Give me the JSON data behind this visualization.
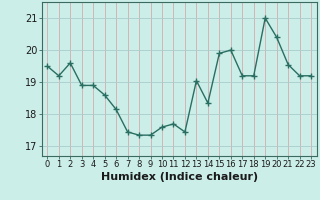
{
  "x": [
    0,
    1,
    2,
    3,
    4,
    5,
    6,
    7,
    8,
    9,
    10,
    11,
    12,
    13,
    14,
    15,
    16,
    17,
    18,
    19,
    20,
    21,
    22,
    23
  ],
  "y": [
    19.5,
    19.2,
    19.6,
    18.9,
    18.9,
    18.6,
    18.15,
    17.45,
    17.35,
    17.35,
    17.6,
    17.7,
    17.45,
    19.05,
    18.35,
    19.9,
    20.0,
    19.2,
    19.2,
    21.0,
    20.4,
    19.55,
    19.2,
    19.2
  ],
  "line_color": "#2a6e62",
  "bg_color": "#cceee8",
  "grid_color_x": "#d4aaaa",
  "grid_color_y": "#aacccc",
  "xlabel": "Humidex (Indice chaleur)",
  "ylim": [
    16.7,
    21.5
  ],
  "xlim": [
    -0.5,
    23.5
  ],
  "yticks": [
    17,
    18,
    19,
    20,
    21
  ],
  "xticks": [
    0,
    1,
    2,
    3,
    4,
    5,
    6,
    7,
    8,
    9,
    10,
    11,
    12,
    13,
    14,
    15,
    16,
    17,
    18,
    19,
    20,
    21,
    22,
    23
  ],
  "xlabel_fontsize": 8,
  "ytick_fontsize": 7,
  "xtick_fontsize": 6,
  "marker_size": 4,
  "line_width": 1.0
}
